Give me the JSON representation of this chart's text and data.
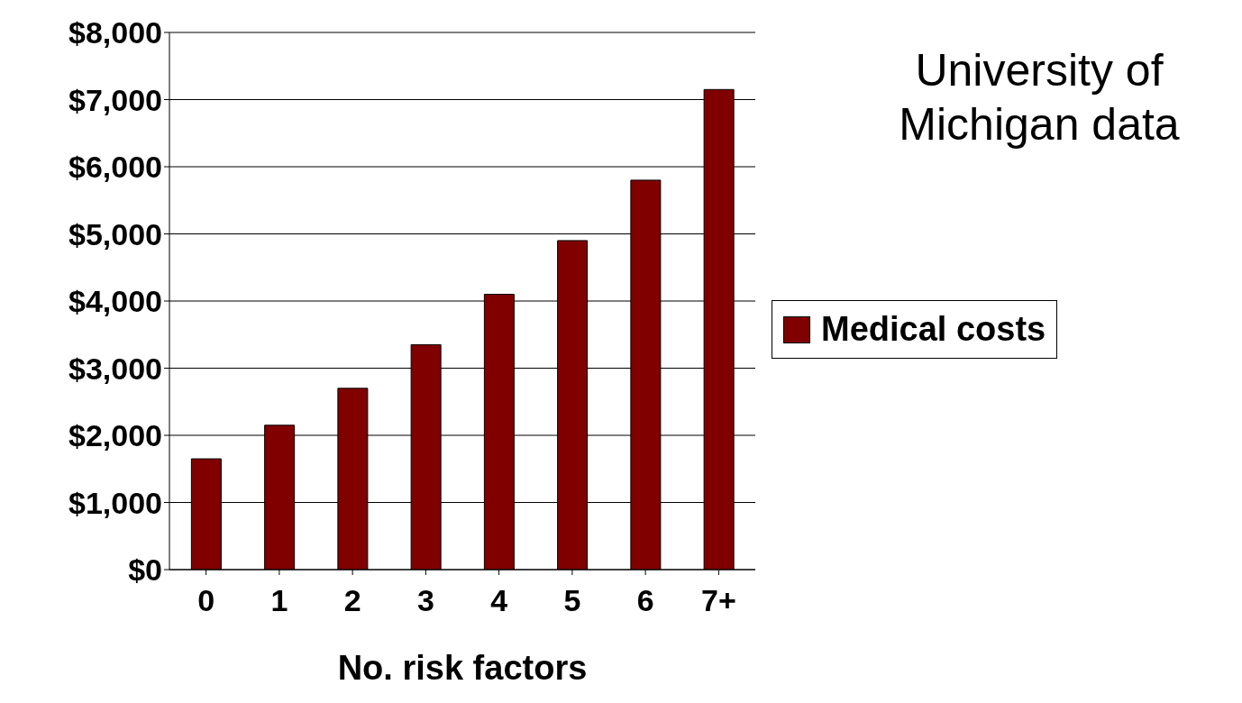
{
  "chart_data": {
    "type": "bar",
    "title": "University of Michigan data",
    "xlabel": "No. risk factors",
    "categories": [
      "0",
      "1",
      "2",
      "3",
      "4",
      "5",
      "6",
      "7+"
    ],
    "series": [
      {
        "name": "Medical costs",
        "color": "#800000",
        "values": [
          1650,
          2150,
          2700,
          3350,
          4100,
          4900,
          5800,
          7150
        ]
      }
    ],
    "ylim": [
      0,
      8000
    ],
    "yticks": [
      {
        "value": 0,
        "label": "$0"
      },
      {
        "value": 1000,
        "label": "$1,000"
      },
      {
        "value": 2000,
        "label": "$2,000"
      },
      {
        "value": 3000,
        "label": "$3,000"
      },
      {
        "value": 4000,
        "label": "$4,000"
      },
      {
        "value": 5000,
        "label": "$5,000"
      },
      {
        "value": 6000,
        "label": "$6,000"
      },
      {
        "value": 7000,
        "label": "$7,000"
      },
      {
        "value": 8000,
        "label": "$8,000"
      }
    ],
    "grid": "y",
    "legend": "right"
  }
}
